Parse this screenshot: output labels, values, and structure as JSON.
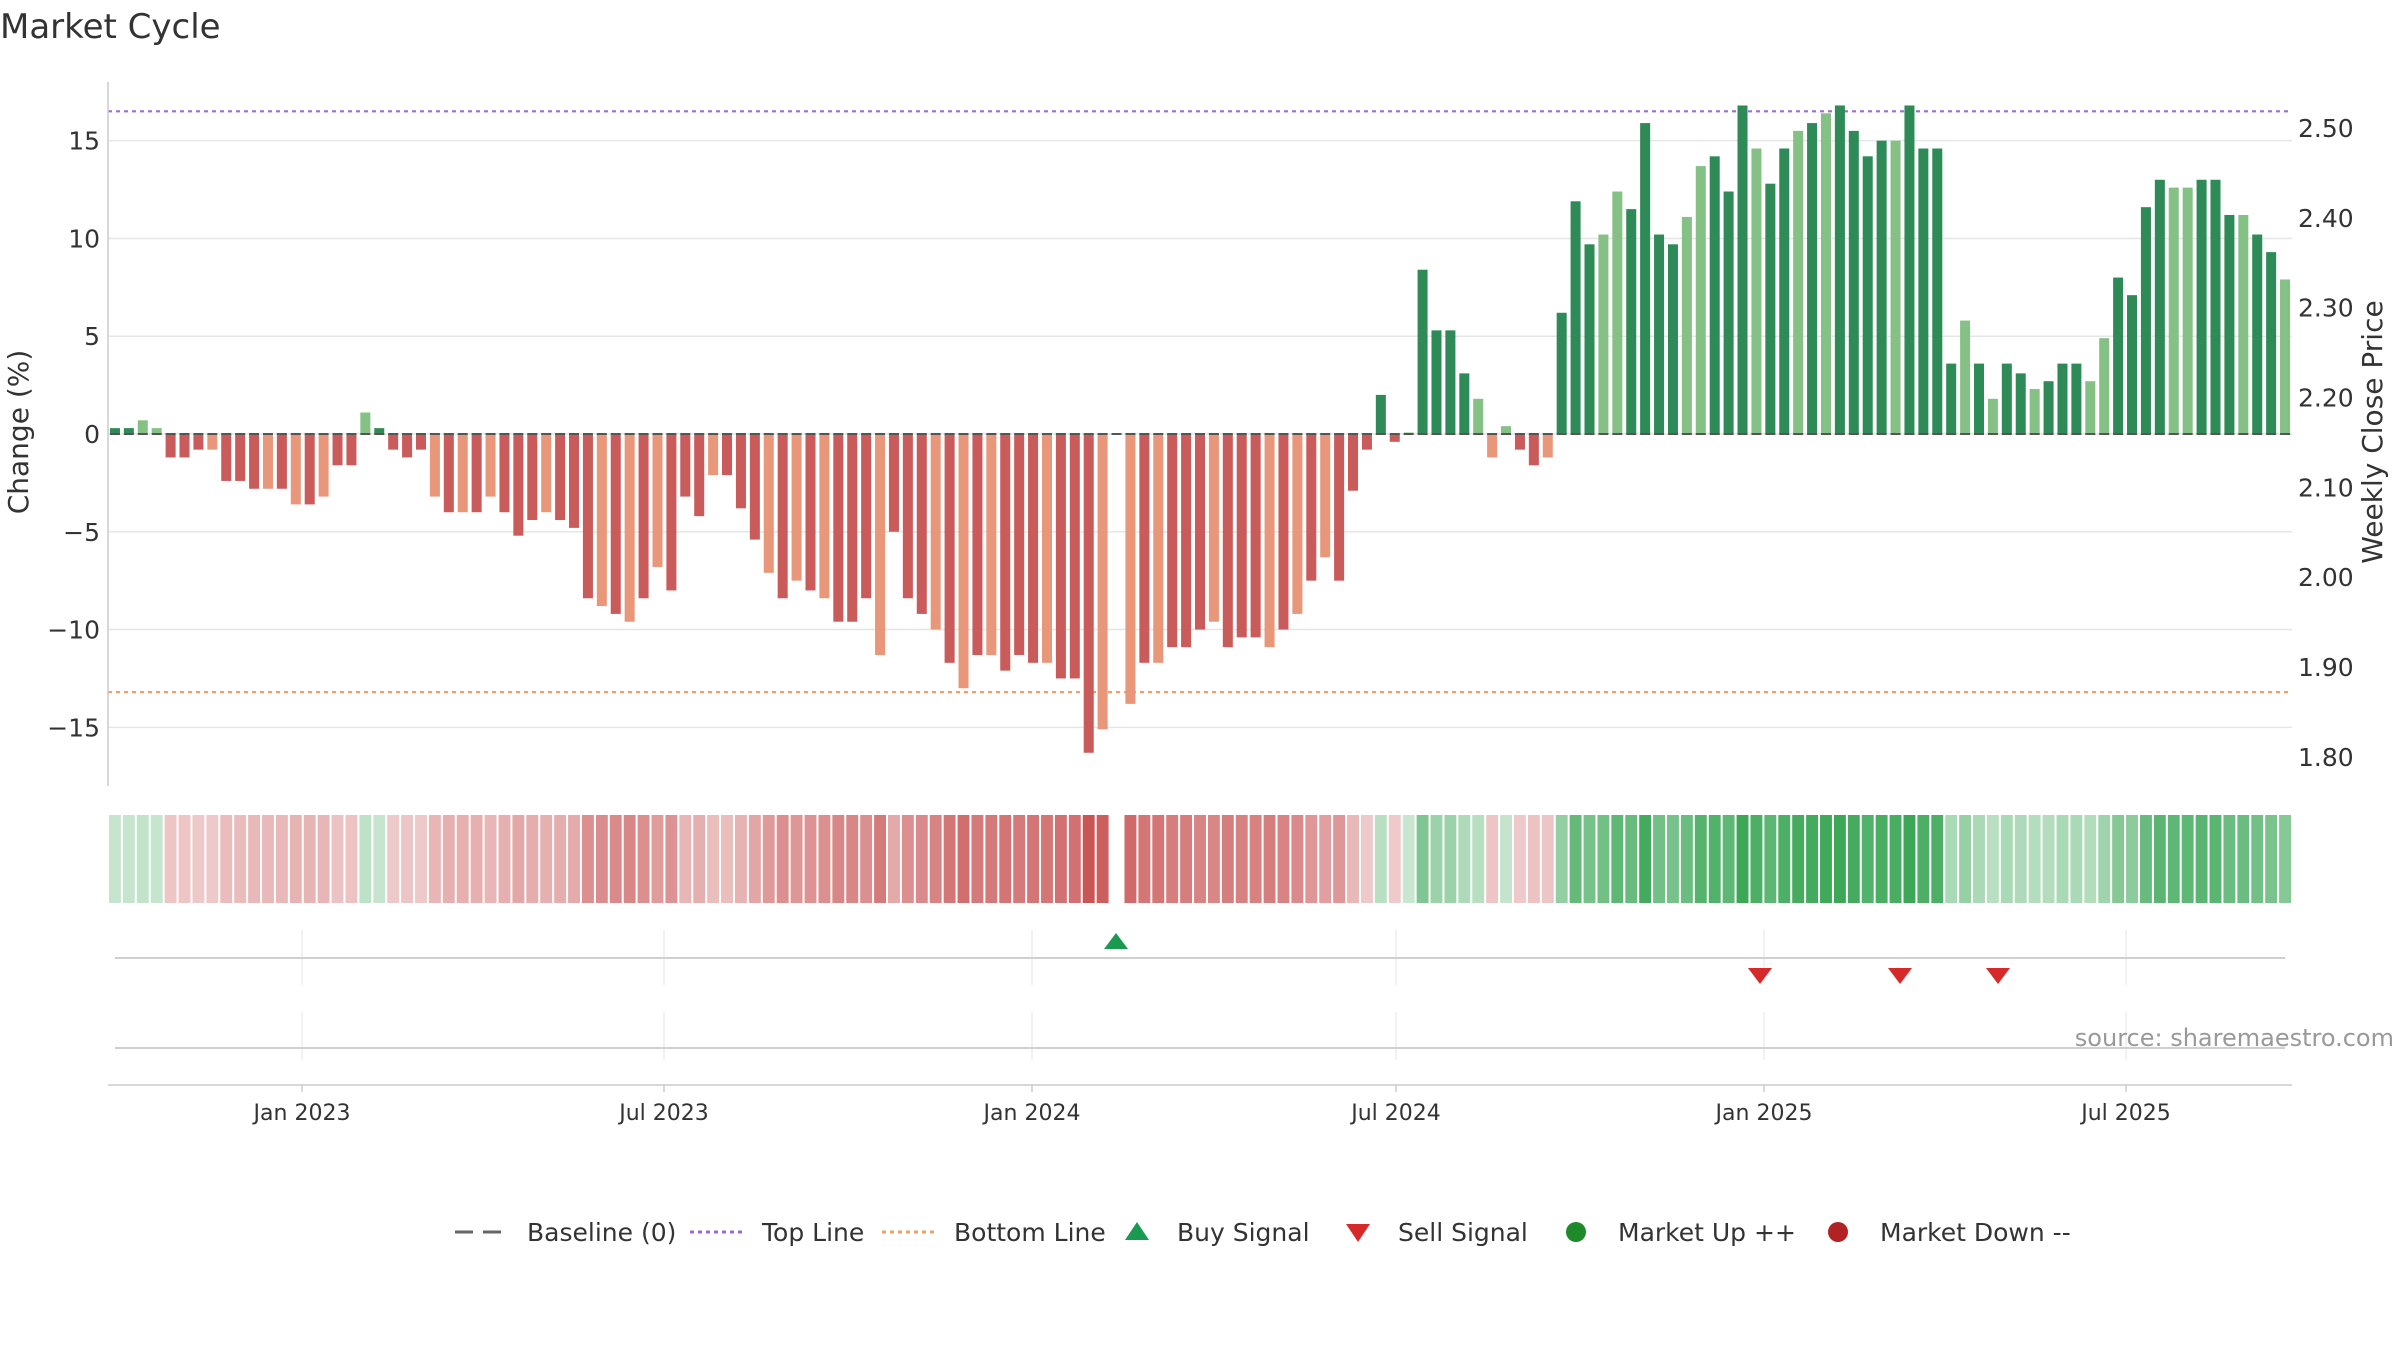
{
  "chart_data": {
    "type": "bar",
    "title": "Market Cycle",
    "ylabel_left": "Change (%)",
    "ylabel_right": "Weekly Close Price",
    "source": "source: sharemaestro.com",
    "y_left": {
      "ylim": [
        -18,
        18
      ],
      "ticks": [
        -15,
        -10,
        -5,
        0,
        5,
        10,
        15
      ],
      "tick_labels": [
        "−15",
        "−10",
        "−5",
        "0",
        "5",
        "10",
        "15"
      ]
    },
    "y_right": {
      "ylim": [
        1.7676,
        2.5512
      ],
      "ticks": [
        1.8,
        1.9,
        2.0,
        2.1,
        2.2,
        2.3,
        2.4,
        2.5
      ],
      "tick_labels": [
        "1.80",
        "1.90",
        "2.00",
        "2.10",
        "2.20",
        "2.30",
        "2.40",
        "2.50"
      ]
    },
    "x_axis": {
      "start": "2022-09-26",
      "end": "2025-09-22",
      "ticks": [
        {
          "date": "2023-01-01",
          "label": "Jan 2023"
        },
        {
          "date": "2023-07-01",
          "label": "Jul 2023"
        },
        {
          "date": "2024-01-01",
          "label": "Jan 2024"
        },
        {
          "date": "2024-07-01",
          "label": "Jul 2024"
        },
        {
          "date": "2025-01-01",
          "label": "Jan 2025"
        },
        {
          "date": "2025-07-01",
          "label": "Jul 2025"
        }
      ]
    },
    "top_line": 16.5,
    "bottom_line": -13.2,
    "week_start": "2022-09-26",
    "weeks_change": [
      0.3,
      0.3,
      0.7,
      0.3,
      -1.2,
      -1.2,
      -0.8,
      -0.8,
      -2.4,
      -2.4,
      -2.8,
      -2.8,
      -2.8,
      -3.6,
      -3.6,
      -3.2,
      -1.6,
      -1.6,
      1.1,
      0.3,
      -0.8,
      -1.2,
      -0.8,
      -3.2,
      -4.0,
      -4.0,
      -4.0,
      -3.2,
      -4.0,
      -5.2,
      -4.4,
      -4.0,
      -4.4,
      -4.8,
      -8.4,
      -8.8,
      -9.2,
      -9.6,
      -8.4,
      -6.8,
      -8.0,
      -3.2,
      -4.2,
      -2.1,
      -2.1,
      -3.8,
      -5.4,
      -7.1,
      -8.4,
      -7.5,
      -8.0,
      -8.4,
      -9.6,
      -9.6,
      -8.4,
      -11.3,
      -5.0,
      -8.4,
      -9.2,
      -10.0,
      -11.7,
      -13.0,
      -11.3,
      -11.3,
      -12.1,
      -11.3,
      -11.7,
      -11.7,
      -12.5,
      -12.5,
      -16.3,
      -15.1,
      null,
      -13.8,
      -11.7,
      -11.7,
      -10.9,
      -10.9,
      -10.0,
      -9.6,
      -10.9,
      -10.4,
      -10.4,
      -10.9,
      -10.0,
      -9.2,
      -7.5,
      -6.3,
      -7.5,
      -2.9,
      -0.8,
      2.0,
      -0.4,
      0.0,
      8.4,
      5.3,
      5.3,
      3.1,
      1.8,
      -1.2,
      0.4,
      -0.8,
      -1.6,
      -1.2,
      6.2,
      11.9,
      9.7,
      10.2,
      12.4,
      11.5,
      15.9,
      10.2,
      9.7,
      11.1,
      13.7,
      14.2,
      12.4,
      16.8,
      14.6,
      12.8,
      14.6,
      15.5,
      15.9,
      16.4,
      16.8,
      15.5,
      14.2,
      15.0,
      15.0,
      16.8,
      14.6,
      14.6,
      3.6,
      5.8,
      3.6,
      1.8,
      3.6,
      3.1,
      2.3,
      2.7,
      3.6,
      3.6,
      2.7,
      4.9,
      8.0,
      7.1,
      11.6,
      13.0,
      12.6,
      12.6,
      13.0,
      13.0,
      11.2,
      11.2,
      10.2,
      9.3,
      7.9
    ],
    "buy_signals": [
      "2024-02-12"
    ],
    "sell_signals": [
      "2024-12-30",
      "2025-03-10",
      "2025-04-28"
    ],
    "market_up": [],
    "market_down": [],
    "legend": [
      {
        "name": "Baseline (0)",
        "style": "dash",
        "color": "#666666"
      },
      {
        "name": "Top Line",
        "style": "dotted",
        "color": "#9e6ad6"
      },
      {
        "name": "Bottom Line",
        "style": "dotted",
        "color": "#f0a066"
      },
      {
        "name": "Buy Signal",
        "style": "triangle-up",
        "color": "#1a9a50"
      },
      {
        "name": "Sell Signal",
        "style": "triangle-down",
        "color": "#d62a2a"
      },
      {
        "name": "Market Up ++",
        "style": "circle",
        "color": "#1f8a2a"
      },
      {
        "name": "Market Down --",
        "style": "circle",
        "color": "#b22222"
      }
    ],
    "colors": {
      "up_strong": "#2e8b57",
      "up_weak": "#85c185",
      "down_strong": "#c95b5b",
      "down_weak": "#e8977a",
      "baseline": "#555555",
      "grid": "#e6e6e6"
    },
    "legend_placement": "bottom-center"
  }
}
